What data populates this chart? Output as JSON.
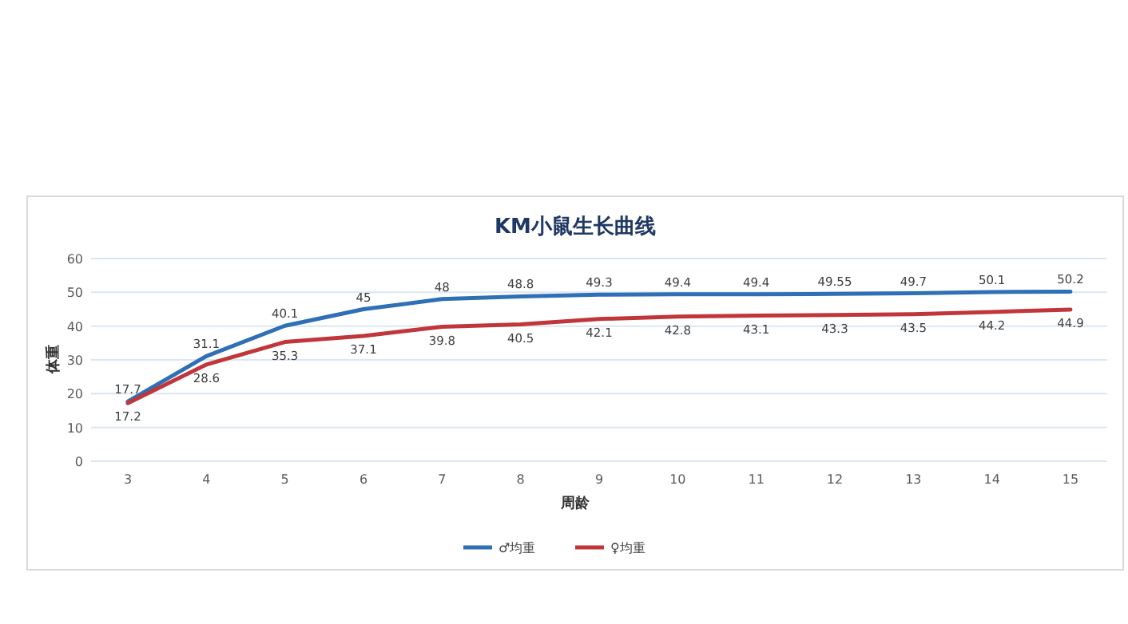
{
  "chart_data": {
    "type": "line",
    "title": "KM小鼠生长曲线",
    "xlabel": "周龄",
    "ylabel": "体重",
    "categories": [
      "3",
      "4",
      "5",
      "6",
      "7",
      "8",
      "9",
      "10",
      "11",
      "12",
      "13",
      "14",
      "15"
    ],
    "series": [
      {
        "name": "♂均重",
        "color": "#2e6fb5",
        "values": [
          17.7,
          31.1,
          40.1,
          45,
          48,
          48.8,
          49.3,
          49.4,
          49.4,
          49.55,
          49.7,
          50.1,
          50.2
        ]
      },
      {
        "name": "♀均重",
        "color": "#c0363a",
        "values": [
          17.2,
          28.6,
          35.3,
          37.1,
          39.8,
          40.5,
          42.1,
          42.8,
          43.1,
          43.3,
          43.5,
          44.2,
          44.9
        ]
      }
    ],
    "ylim": [
      0,
      60
    ],
    "yticks": [
      0,
      10,
      20,
      30,
      40,
      50,
      60
    ],
    "grid": "y",
    "legend": "bottom",
    "data_labels": true
  }
}
